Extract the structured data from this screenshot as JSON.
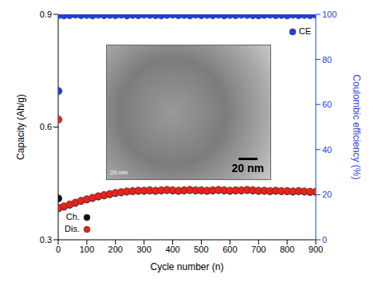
{
  "chart_data": {
    "type": "scatter",
    "x_label": "Cycle number (n)",
    "y_label": "Capacity (Ah/g)",
    "y2_label": "Coulombic efficiency (%)",
    "xlim": [
      0,
      900
    ],
    "xticks": [
      0,
      100,
      200,
      300,
      400,
      500,
      600,
      700,
      800,
      900
    ],
    "ylim": [
      0.3,
      0.9
    ],
    "yticks": [
      0.3,
      0.6,
      0.9
    ],
    "y2lim": [
      0,
      100
    ],
    "y2ticks": [
      0,
      20,
      40,
      60,
      80,
      100
    ],
    "legend": "lower left",
    "annotations": [
      "20 nm",
      "20 nm"
    ],
    "x": [
      1,
      2,
      20,
      40,
      60,
      80,
      100,
      120,
      140,
      160,
      180,
      200,
      220,
      240,
      260,
      280,
      300,
      320,
      340,
      360,
      380,
      400,
      420,
      440,
      460,
      480,
      500,
      520,
      540,
      560,
      580,
      600,
      620,
      640,
      660,
      680,
      700,
      720,
      740,
      760,
      780,
      800,
      820,
      840,
      860,
      880,
      900
    ],
    "series": [
      {
        "name": "Ch.",
        "color": "#111111",
        "marker": "circle",
        "values": [
          0.41,
          0.384,
          0.388,
          0.393,
          0.398,
          0.403,
          0.407,
          0.411,
          0.415,
          0.418,
          0.421,
          0.424,
          0.426,
          0.428,
          0.429,
          0.43,
          0.43,
          0.431,
          0.43,
          0.431,
          0.432,
          0.431,
          0.43,
          0.431,
          0.432,
          0.431,
          0.431,
          0.43,
          0.431,
          0.432,
          0.431,
          0.43,
          0.431,
          0.431,
          0.432,
          0.431,
          0.43,
          0.43,
          0.429,
          0.43,
          0.429,
          0.429,
          0.428,
          0.429,
          0.428,
          0.427,
          0.427
        ]
      },
      {
        "name": "Dis.",
        "color": "#e8231c",
        "marker": "circle",
        "values": [
          0.62,
          0.385,
          0.389,
          0.394,
          0.399,
          0.404,
          0.408,
          0.412,
          0.416,
          0.419,
          0.422,
          0.425,
          0.427,
          0.429,
          0.43,
          0.431,
          0.431,
          0.432,
          0.431,
          0.432,
          0.433,
          0.432,
          0.431,
          0.432,
          0.433,
          0.432,
          0.432,
          0.431,
          0.432,
          0.433,
          0.432,
          0.431,
          0.432,
          0.432,
          0.433,
          0.432,
          0.431,
          0.431,
          0.43,
          0.431,
          0.43,
          0.43,
          0.429,
          0.43,
          0.429,
          0.428,
          0.428
        ]
      },
      {
        "name": "CE",
        "color": "#1f3fe0",
        "marker": "circle",
        "axis": "y2",
        "values": [
          66,
          99.7,
          99.5,
          99.6,
          99.8,
          99.6,
          99.7,
          99.5,
          99.8,
          99.6,
          99.7,
          99.6,
          99.8,
          99.5,
          99.7,
          99.6,
          99.8,
          99.7,
          99.6,
          99.5,
          99.7,
          99.8,
          99.6,
          99.7,
          99.5,
          99.8,
          99.6,
          99.7,
          99.6,
          99.8,
          99.5,
          99.7,
          99.6,
          99.8,
          99.7,
          99.6,
          99.5,
          99.7,
          99.8,
          99.6,
          99.7,
          99.5,
          99.8,
          99.6,
          99.7,
          99.6,
          99.8
        ]
      }
    ]
  }
}
